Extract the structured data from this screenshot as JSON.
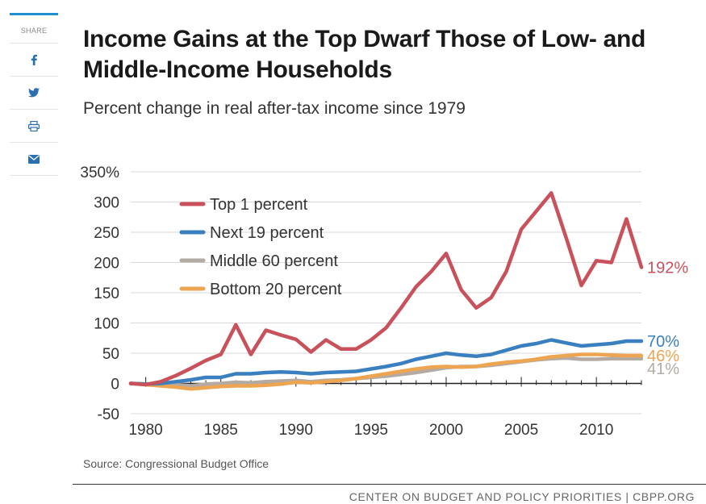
{
  "share": {
    "label": "SHARE",
    "buttons": [
      {
        "icon": "facebook-icon"
      },
      {
        "icon": "twitter-icon"
      },
      {
        "icon": "print-icon"
      },
      {
        "icon": "email-icon"
      }
    ],
    "accent": "#1f8fd0"
  },
  "header": {
    "title": "Income Gains at the Top Dwarf Those of Low- and Middle-Income Households",
    "subtitle": "Percent change in real after-tax income since 1979"
  },
  "source": "Source: Congressional Budget Office",
  "footer": "CENTER ON BUDGET AND POLICY PRIORITIES | CBPP.ORG",
  "chart_data": {
    "type": "line",
    "title": "",
    "xlabel": "",
    "ylabel": "",
    "xlim": [
      1979,
      2013
    ],
    "ylim": [
      -50,
      350
    ],
    "y_ticks": [
      "350%",
      "300",
      "250",
      "200",
      "150",
      "100",
      "50",
      "0",
      "-50"
    ],
    "x_ticks": [
      "1980",
      "1985",
      "1990",
      "1995",
      "2000",
      "2005",
      "2010"
    ],
    "grid": true,
    "legend_position": "top-left",
    "x": [
      1979,
      1980,
      1981,
      1982,
      1983,
      1984,
      1985,
      1986,
      1987,
      1988,
      1989,
      1990,
      1991,
      1992,
      1993,
      1994,
      1995,
      1996,
      1997,
      1998,
      1999,
      2000,
      2001,
      2002,
      2003,
      2004,
      2005,
      2006,
      2007,
      2008,
      2009,
      2010,
      2011,
      2012,
      2013
    ],
    "series": [
      {
        "name": "Top 1 percent",
        "color": "#c9515c",
        "end_label": "192%",
        "values": [
          0,
          -2,
          3,
          13,
          25,
          38,
          48,
          97,
          48,
          88,
          80,
          73,
          52,
          72,
          57,
          57,
          72,
          92,
          125,
          160,
          185,
          215,
          155,
          125,
          142,
          185,
          255,
          285,
          315,
          240,
          162,
          203,
          200,
          272,
          192
        ]
      },
      {
        "name": "Next 19 percent",
        "color": "#3a7fbf",
        "end_label": "70%",
        "values": [
          0,
          -1,
          0,
          3,
          6,
          10,
          10,
          16,
          16,
          18,
          19,
          18,
          16,
          18,
          19,
          20,
          24,
          28,
          33,
          40,
          45,
          50,
          47,
          45,
          48,
          55,
          62,
          66,
          72,
          67,
          62,
          64,
          66,
          70,
          70
        ]
      },
      {
        "name": "Middle 60 percent",
        "color": "#b3aba3",
        "end_label": "41%",
        "values": [
          0,
          -1,
          -2,
          -2,
          -4,
          -1,
          0,
          2,
          1,
          3,
          4,
          5,
          3,
          5,
          6,
          8,
          10,
          12,
          15,
          18,
          22,
          26,
          28,
          28,
          30,
          33,
          36,
          39,
          41,
          42,
          40,
          40,
          41,
          41,
          41
        ]
      },
      {
        "name": "Bottom 20 percent",
        "color": "#eda552",
        "end_label": "46%",
        "values": [
          0,
          -2,
          -4,
          -6,
          -9,
          -7,
          -5,
          -4,
          -4,
          -3,
          -1,
          2,
          1,
          3,
          5,
          8,
          12,
          16,
          20,
          24,
          27,
          28,
          27,
          28,
          32,
          35,
          37,
          40,
          44,
          46,
          48,
          48,
          47,
          46,
          46
        ]
      }
    ]
  }
}
